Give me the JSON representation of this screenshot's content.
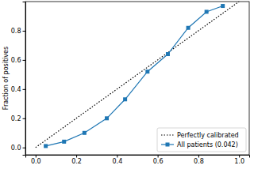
{
  "chart_data": {
    "type": "line",
    "y_label": "Fraction of positives",
    "xlim": [
      -0.05,
      1.05
    ],
    "ylim": [
      -0.05,
      1.0
    ],
    "xticks": [
      {
        "value": 0,
        "label": "0.0"
      },
      0.2,
      0.4,
      0.6,
      0.8,
      {
        "value": 1,
        "label": "1.0"
      }
    ],
    "yticks": [
      {
        "value": 0,
        "label": "0.0"
      },
      0.2,
      0.4,
      0.6,
      0.8
    ],
    "grid": false,
    "legend": "lower right",
    "series": [
      {
        "name": "Perfectly calibrated",
        "color": "#000000",
        "line_style": "dotted",
        "marker": "none",
        "x": [
          0,
          1
        ],
        "values": [
          0,
          1
        ]
      },
      {
        "name": "All patients (0.042)",
        "color": "#1f77b4",
        "line_style": "solid",
        "marker": "square",
        "x": [
          0.05,
          0.14,
          0.24,
          0.35,
          0.44,
          0.55,
          0.65,
          0.75,
          0.84,
          0.92
        ],
        "values": [
          0.01,
          0.04,
          0.1,
          0.2,
          0.33,
          0.52,
          0.64,
          0.82,
          0.93,
          0.97
        ]
      }
    ]
  }
}
